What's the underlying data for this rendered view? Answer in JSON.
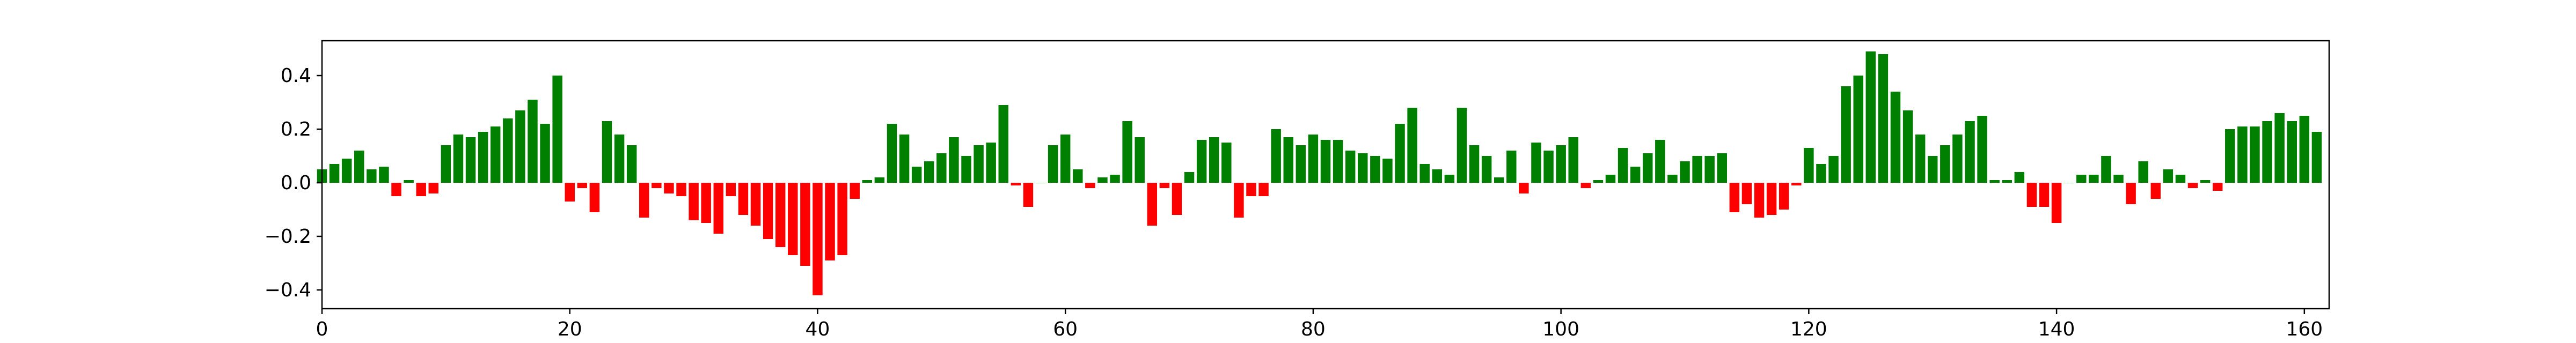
{
  "colors": {
    "positive": "#008000",
    "negative": "#ff0000",
    "axis": "#000000",
    "background": "#ffffff"
  },
  "chart_data": {
    "type": "bar",
    "title": "",
    "xlabel": "",
    "ylabel": "",
    "grid": false,
    "xlim": [
      0,
      162
    ],
    "ylim": [
      -0.47,
      0.53
    ],
    "x_ticks": [
      0,
      20,
      40,
      60,
      80,
      100,
      120,
      140,
      160
    ],
    "x_tick_labels": [
      "0",
      "20",
      "40",
      "60",
      "80",
      "100",
      "120",
      "140",
      "160"
    ],
    "y_ticks": [
      -0.4,
      -0.2,
      0.0,
      0.2,
      0.4
    ],
    "y_tick_labels": [
      "−0.4",
      "−0.2",
      "0.0",
      "0.2",
      "0.4"
    ],
    "bar_color_rule": "green if value >= 0, red if value < 0",
    "x": [
      0,
      1,
      2,
      3,
      4,
      5,
      6,
      7,
      8,
      9,
      10,
      11,
      12,
      13,
      14,
      15,
      16,
      17,
      18,
      19,
      20,
      21,
      22,
      23,
      24,
      25,
      26,
      27,
      28,
      29,
      30,
      31,
      32,
      33,
      34,
      35,
      36,
      37,
      38,
      39,
      40,
      41,
      42,
      43,
      44,
      45,
      46,
      47,
      48,
      49,
      50,
      51,
      52,
      53,
      54,
      55,
      56,
      57,
      58,
      59,
      60,
      61,
      62,
      63,
      64,
      65,
      66,
      67,
      68,
      69,
      70,
      71,
      72,
      73,
      74,
      75,
      76,
      77,
      78,
      79,
      80,
      81,
      82,
      83,
      84,
      85,
      86,
      87,
      88,
      89,
      90,
      91,
      92,
      93,
      94,
      95,
      96,
      97,
      98,
      99,
      100,
      101,
      102,
      103,
      104,
      105,
      106,
      107,
      108,
      109,
      110,
      111,
      112,
      113,
      114,
      115,
      116,
      117,
      118,
      119,
      120,
      121,
      122,
      123,
      124,
      125,
      126,
      127,
      128,
      129,
      130,
      131,
      132,
      133,
      134,
      135,
      136,
      137,
      138,
      139,
      140,
      141,
      142,
      143,
      144,
      145,
      146,
      147,
      148,
      149,
      150,
      151,
      152,
      153,
      154,
      155,
      156,
      157,
      158,
      159,
      160,
      161
    ],
    "values": [
      0.05,
      0.07,
      0.09,
      0.12,
      0.05,
      0.06,
      -0.05,
      0.01,
      -0.05,
      -0.04,
      0.14,
      0.18,
      0.17,
      0.19,
      0.21,
      0.24,
      0.27,
      0.31,
      0.22,
      0.4,
      -0.07,
      -0.02,
      -0.11,
      0.23,
      0.18,
      0.14,
      -0.13,
      -0.02,
      -0.04,
      -0.05,
      -0.14,
      -0.15,
      -0.19,
      -0.05,
      -0.12,
      -0.16,
      -0.21,
      -0.24,
      -0.27,
      -0.31,
      -0.42,
      -0.29,
      -0.27,
      -0.06,
      0.01,
      0.02,
      0.22,
      0.18,
      0.06,
      0.08,
      0.11,
      0.17,
      0.1,
      0.14,
      0.15,
      0.29,
      -0.01,
      -0.09,
      0.0,
      0.14,
      0.18,
      0.05,
      -0.02,
      0.02,
      0.03,
      0.23,
      0.17,
      -0.16,
      -0.02,
      -0.12,
      0.04,
      0.16,
      0.17,
      0.15,
      -0.13,
      -0.05,
      -0.05,
      0.2,
      0.17,
      0.14,
      0.18,
      0.16,
      0.16,
      0.12,
      0.11,
      0.1,
      0.09,
      0.22,
      0.28,
      0.07,
      0.05,
      0.03,
      0.28,
      0.14,
      0.1,
      0.02,
      0.12,
      -0.04,
      0.15,
      0.12,
      0.14,
      0.17,
      -0.02,
      0.01,
      0.03,
      0.13,
      0.06,
      0.11,
      0.16,
      0.03,
      0.08,
      0.1,
      0.1,
      0.11,
      -0.11,
      -0.08,
      -0.13,
      -0.12,
      -0.1,
      -0.01,
      0.13,
      0.07,
      0.1,
      0.36,
      0.4,
      0.49,
      0.48,
      0.34,
      0.27,
      0.18,
      0.1,
      0.14,
      0.18,
      0.23,
      0.25,
      0.01,
      0.01,
      0.04,
      -0.09,
      -0.09,
      -0.15,
      0.0,
      0.03,
      0.03,
      0.1,
      0.03,
      -0.08,
      0.08,
      -0.06,
      0.05,
      0.03,
      -0.02,
      0.01,
      -0.03,
      0.2,
      0.21,
      0.21,
      0.23,
      0.26,
      0.23,
      0.25,
      0.19
    ]
  }
}
